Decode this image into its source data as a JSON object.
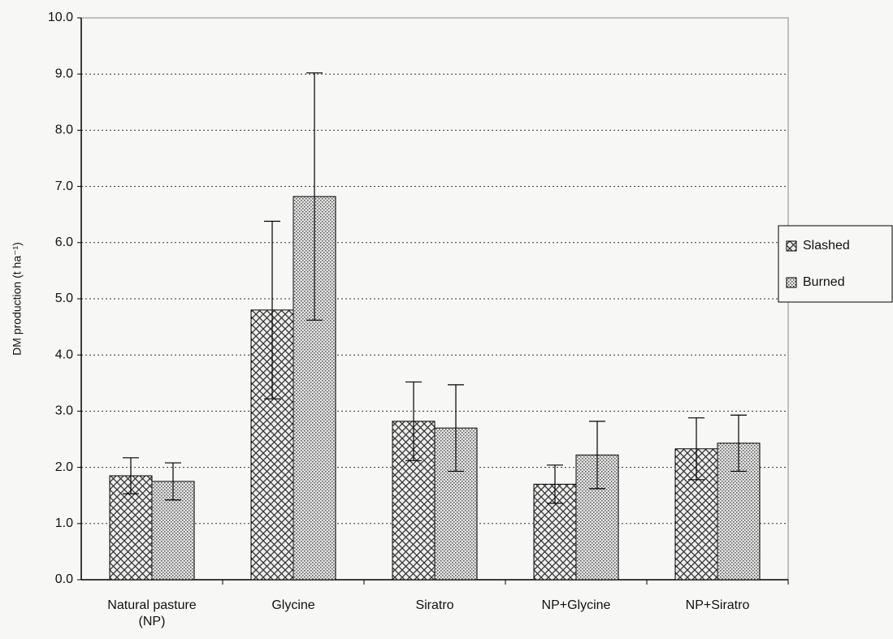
{
  "chart_data": {
    "type": "bar",
    "y_label": "DM production (t ha⁻¹)",
    "categories": [
      "Natural pasture (NP)",
      "Glycine",
      "Siratro",
      "NP+Glycine",
      "NP+Siratro"
    ],
    "series": [
      {
        "name": "Slashed",
        "color": "#333333",
        "pattern": "crosshatch",
        "values": [
          1.85,
          4.8,
          2.82,
          1.7,
          2.33
        ],
        "errors": [
          0.32,
          1.58,
          0.7,
          0.34,
          0.55
        ]
      },
      {
        "name": "Burned",
        "color": "#555555",
        "pattern": "dots",
        "values": [
          1.75,
          6.82,
          2.7,
          2.22,
          2.43
        ],
        "errors": [
          0.33,
          2.2,
          0.77,
          0.6,
          0.5
        ]
      }
    ],
    "ylim": [
      0,
      10
    ],
    "yticks": [
      {
        "value": 0,
        "label": "0.0"
      },
      {
        "value": 1,
        "label": "1.0"
      },
      {
        "value": 2,
        "label": "2.0"
      },
      {
        "value": 3,
        "label": "3.0"
      },
      {
        "value": 4,
        "label": "4.0"
      },
      {
        "value": 5,
        "label": "5.0"
      },
      {
        "value": 6,
        "label": "6.0"
      },
      {
        "value": 7,
        "label": "7.0"
      },
      {
        "value": 8,
        "label": "8.0"
      },
      {
        "value": 9,
        "label": "9.0"
      },
      {
        "value": 10,
        "label": "10.0"
      }
    ],
    "grid": true,
    "legend": "right"
  }
}
